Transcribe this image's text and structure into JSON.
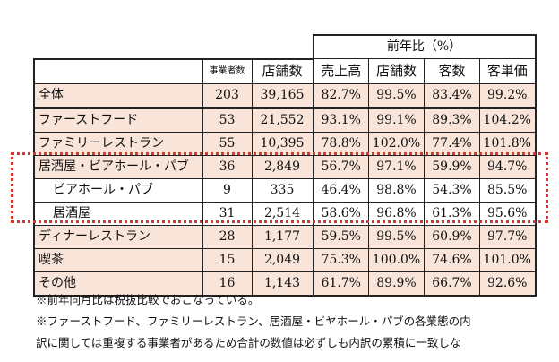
{
  "table": {
    "group_header": "前年比（%）",
    "columns": [
      "",
      "事業者数",
      "店舗数",
      "売上高",
      "店舗数",
      "客数",
      "客単価"
    ],
    "rows": [
      {
        "label": "全体",
        "businesses": "203",
        "stores": "39,165",
        "sales": "82.7%",
        "store_ratio": "99.5%",
        "customers": "83.4%",
        "avg_spend": "99.2%"
      },
      {
        "label": "ファーストフード",
        "businesses": "53",
        "stores": "21,552",
        "sales": "93.1%",
        "store_ratio": "99.1%",
        "customers": "89.3%",
        "avg_spend": "104.2%"
      },
      {
        "label": "ファミリーレストラン",
        "businesses": "55",
        "stores": "10,395",
        "sales": "78.8%",
        "store_ratio": "102.0%",
        "customers": "77.4%",
        "avg_spend": "101.8%"
      },
      {
        "label": "居酒屋・ビアホール・パブ",
        "businesses": "36",
        "stores": "2,849",
        "sales": "56.7%",
        "store_ratio": "97.1%",
        "customers": "59.9%",
        "avg_spend": "94.7%"
      },
      {
        "label": "ビアホール・パブ",
        "businesses": "9",
        "stores": "335",
        "sales": "46.4%",
        "store_ratio": "98.8%",
        "customers": "54.3%",
        "avg_spend": "85.5%"
      },
      {
        "label": "居酒屋",
        "businesses": "31",
        "stores": "2,514",
        "sales": "58.6%",
        "store_ratio": "96.8%",
        "customers": "61.3%",
        "avg_spend": "95.6%"
      },
      {
        "label": "ディナーレストラン",
        "businesses": "28",
        "stores": "1,177",
        "sales": "59.5%",
        "store_ratio": "99.5%",
        "customers": "60.9%",
        "avg_spend": "97.7%"
      },
      {
        "label": "喫茶",
        "businesses": "15",
        "stores": "2,049",
        "sales": "75.3%",
        "store_ratio": "100.0%",
        "customers": "74.6%",
        "avg_spend": "101.0%"
      },
      {
        "label": "その他",
        "businesses": "16",
        "stores": "1,143",
        "sales": "61.7%",
        "store_ratio": "89.9%",
        "customers": "66.7%",
        "avg_spend": "92.6%"
      }
    ]
  },
  "notes": [
    "※前年同月比は税抜比較でおこなっている。",
    "※ファーストフード、ファミリーレストラン、居酒屋・ビヤホール・パブの各業態の内",
    "訳に関しては重複する事業者があるため合計の数値は必ずしも内訳の累積に一致しな"
  ],
  "colors": {
    "row_shade": "#f8e4d9",
    "highlight_border": "#e0302a",
    "grid": "#222222"
  }
}
